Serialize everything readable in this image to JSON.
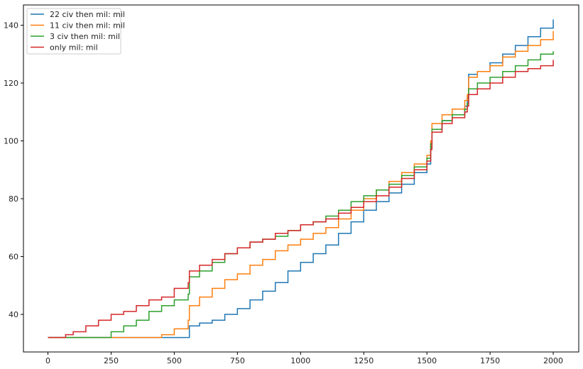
{
  "chart_data": {
    "type": "line",
    "title": "",
    "xlabel": "",
    "ylabel": "",
    "xlim": [
      -97,
      2101
    ],
    "ylim": [
      27,
      147
    ],
    "xticks": [
      0,
      250,
      500,
      750,
      1000,
      1250,
      1500,
      1750,
      2000
    ],
    "yticks": [
      40,
      60,
      80,
      100,
      120,
      140
    ],
    "grid": false,
    "legend_position": "top-left",
    "series": [
      {
        "name": "22 civ then mil: mil",
        "color": "#1f77b4",
        "x": [
          0,
          560,
          560,
          600,
          650,
          700,
          750,
          800,
          850,
          900,
          950,
          1000,
          1050,
          1100,
          1150,
          1200,
          1250,
          1300,
          1350,
          1400,
          1450,
          1500,
          1515,
          1520,
          1560,
          1600,
          1650,
          1660,
          1665,
          1700,
          1750,
          1800,
          1850,
          1900,
          1950,
          2000
        ],
        "y": [
          32,
          32,
          36,
          37,
          38,
          40,
          42,
          45,
          48,
          51,
          55,
          58,
          61,
          64,
          68,
          72,
          76,
          79,
          82,
          85,
          89,
          92,
          98,
          104,
          107,
          109,
          112,
          115,
          123,
          124,
          127,
          130,
          133,
          136,
          139,
          142
        ]
      },
      {
        "name": "11 civ then mil: mil",
        "color": "#ff7f0e",
        "x": [
          0,
          445,
          450,
          500,
          555,
          560,
          600,
          650,
          700,
          750,
          800,
          850,
          900,
          950,
          1000,
          1050,
          1100,
          1150,
          1200,
          1250,
          1300,
          1350,
          1400,
          1450,
          1500,
          1515,
          1520,
          1560,
          1600,
          1650,
          1660,
          1665,
          1700,
          1750,
          1800,
          1850,
          1900,
          1950,
          2000
        ],
        "y": [
          32,
          32,
          33,
          35,
          38,
          43,
          46,
          49,
          52,
          54,
          57,
          59,
          62,
          64,
          66,
          68,
          70,
          73,
          76,
          80,
          83,
          86,
          89,
          92,
          95,
          100,
          106,
          109,
          111,
          114,
          116,
          122,
          124,
          126,
          129,
          131,
          133,
          135,
          138
        ]
      },
      {
        "name": "3 civ then mil: mil",
        "color": "#2ca02c",
        "x": [
          0,
          200,
          250,
          300,
          350,
          400,
          450,
          500,
          555,
          560,
          600,
          650,
          700,
          750,
          800,
          850,
          900,
          950,
          1000,
          1050,
          1100,
          1150,
          1200,
          1250,
          1300,
          1350,
          1400,
          1450,
          1500,
          1515,
          1520,
          1560,
          1600,
          1650,
          1660,
          1665,
          1700,
          1750,
          1800,
          1850,
          1900,
          1950,
          2000
        ],
        "y": [
          32,
          32,
          34,
          36,
          38,
          41,
          43,
          45,
          47,
          53,
          55,
          58,
          61,
          63,
          65,
          66,
          67,
          69,
          71,
          72,
          74,
          76,
          79,
          81,
          83,
          85,
          88,
          91,
          94,
          99,
          104,
          107,
          109,
          111,
          113,
          118,
          120,
          122,
          124,
          126,
          128,
          130,
          131
        ]
      },
      {
        "name": "only mil: mil",
        "color": "#d62728",
        "x": [
          0,
          70,
          100,
          150,
          200,
          250,
          300,
          350,
          400,
          450,
          500,
          555,
          560,
          600,
          650,
          700,
          750,
          800,
          850,
          900,
          950,
          1000,
          1050,
          1100,
          1150,
          1200,
          1250,
          1300,
          1350,
          1400,
          1450,
          1500,
          1515,
          1520,
          1560,
          1600,
          1650,
          1660,
          1665,
          1700,
          1750,
          1800,
          1850,
          1900,
          1950,
          2000
        ],
        "y": [
          32,
          33,
          34,
          36,
          38,
          40,
          41,
          43,
          45,
          46,
          49,
          51,
          55,
          57,
          59,
          61,
          63,
          65,
          66,
          68,
          69,
          71,
          72,
          73,
          75,
          77,
          79,
          81,
          84,
          87,
          90,
          93,
          97,
          103,
          106,
          108,
          110,
          112,
          116,
          118,
          120,
          122,
          124,
          125,
          126,
          128
        ]
      }
    ]
  }
}
